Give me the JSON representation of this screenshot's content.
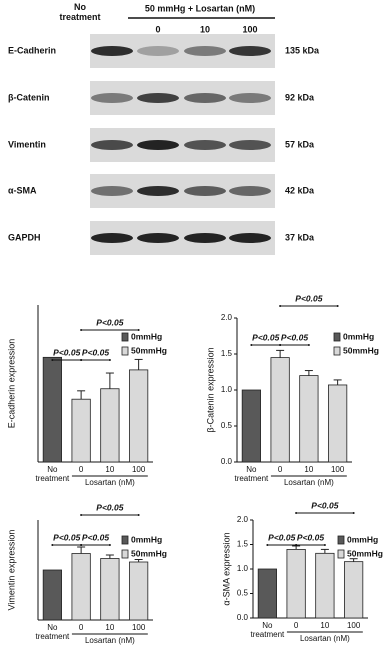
{
  "blot": {
    "header": {
      "control": "No treatment",
      "group": "50 mmHg + Losartan (nM)",
      "lanes": [
        "0",
        "10",
        "100"
      ]
    },
    "rows": [
      {
        "label": "E-Cadherin",
        "size": "135 kDa"
      },
      {
        "label": "β-Catenin",
        "size": "92 kDa"
      },
      {
        "label": "Vimentin",
        "size": "57 kDa"
      },
      {
        "label": "α-SMA",
        "size": "42 kDa"
      },
      {
        "label": "GAPDH",
        "size": "37 kDa"
      }
    ]
  },
  "chart_data": [
    {
      "type": "bar",
      "y_label": "E-cadherin expression",
      "categories": [
        "No treatment",
        "0",
        "10",
        "100"
      ],
      "x_group_label": "Losartan (nM)",
      "ylim": [
        0,
        1.5
      ],
      "series": [
        {
          "name": "0mmHg",
          "color": "#595959",
          "values": [
            1.0,
            null,
            null,
            null
          ],
          "errors": [
            0,
            null,
            null,
            null
          ]
        },
        {
          "name": "50mmHg",
          "color": "#d9d9d9",
          "values": [
            null,
            0.6,
            0.7,
            0.88
          ],
          "errors": [
            null,
            0.08,
            0.15,
            0.1
          ]
        }
      ],
      "annotations": [
        "P<0.05",
        "P<0.05",
        "P<0.05"
      ]
    },
    {
      "type": "bar",
      "y_label": "β-Catenin expression",
      "categories": [
        "No treatment",
        "0",
        "10",
        "100"
      ],
      "x_group_label": "Losartan (nM)",
      "ylim": [
        0,
        2.0
      ],
      "yticks": [
        {
          "value": 0,
          "label": "0.0"
        },
        {
          "value": 0.5,
          "label": "0.5"
        },
        {
          "value": 1,
          "label": "1.0"
        },
        {
          "value": 1.5,
          "label": "1.5"
        },
        {
          "value": 2,
          "label": "2.0"
        }
      ],
      "series": [
        {
          "name": "0mmHg",
          "color": "#595959",
          "values": [
            1.0,
            null,
            null,
            null
          ],
          "errors": [
            0,
            null,
            null,
            null
          ]
        },
        {
          "name": "50mmHg",
          "color": "#d9d9d9",
          "values": [
            null,
            1.45,
            1.2,
            1.07
          ],
          "errors": [
            null,
            0.1,
            0.07,
            0.07
          ]
        }
      ],
      "annotations": [
        "P<0.05",
        "P<0.05",
        "P<0.05"
      ]
    },
    {
      "type": "bar",
      "y_label": "Vimentin expression",
      "categories": [
        "No treatment",
        "0",
        "10",
        "100"
      ],
      "x_group_label": "Losartan (nM)",
      "ylim": [
        0,
        2.0
      ],
      "series": [
        {
          "name": "0mmHg",
          "color": "#595959",
          "values": [
            1.0,
            null,
            null,
            null
          ],
          "errors": [
            0,
            null,
            null,
            null
          ]
        },
        {
          "name": "50mmHg",
          "color": "#d9d9d9",
          "values": [
            null,
            1.33,
            1.23,
            1.16
          ],
          "errors": [
            null,
            0.13,
            0.07,
            0.05
          ]
        }
      ],
      "annotations": [
        "P<0.05",
        "P<0.05",
        "P<0.05"
      ]
    },
    {
      "type": "bar",
      "y_label": "α-SMA expression",
      "categories": [
        "No treatment",
        "0",
        "10",
        "100"
      ],
      "x_group_label": "Losartan (nM)",
      "ylim": [
        0,
        2.0
      ],
      "yticks": [
        {
          "value": 0,
          "label": "0.0"
        },
        {
          "value": 0.5,
          "label": "0.5"
        },
        {
          "value": 1,
          "label": "1.0"
        },
        {
          "value": 1.5,
          "label": "1.5"
        },
        {
          "value": 2,
          "label": "2.0"
        }
      ],
      "series": [
        {
          "name": "0mmHg",
          "color": "#595959",
          "values": [
            1.0,
            null,
            null,
            null
          ],
          "errors": [
            0,
            null,
            null,
            null
          ]
        },
        {
          "name": "50mmHg",
          "color": "#d9d9d9",
          "values": [
            null,
            1.4,
            1.32,
            1.15
          ],
          "errors": [
            null,
            0.07,
            0.08,
            0.06
          ]
        }
      ],
      "annotations": [
        "P<0.05",
        "P<0.05",
        "P<0.05"
      ]
    }
  ]
}
